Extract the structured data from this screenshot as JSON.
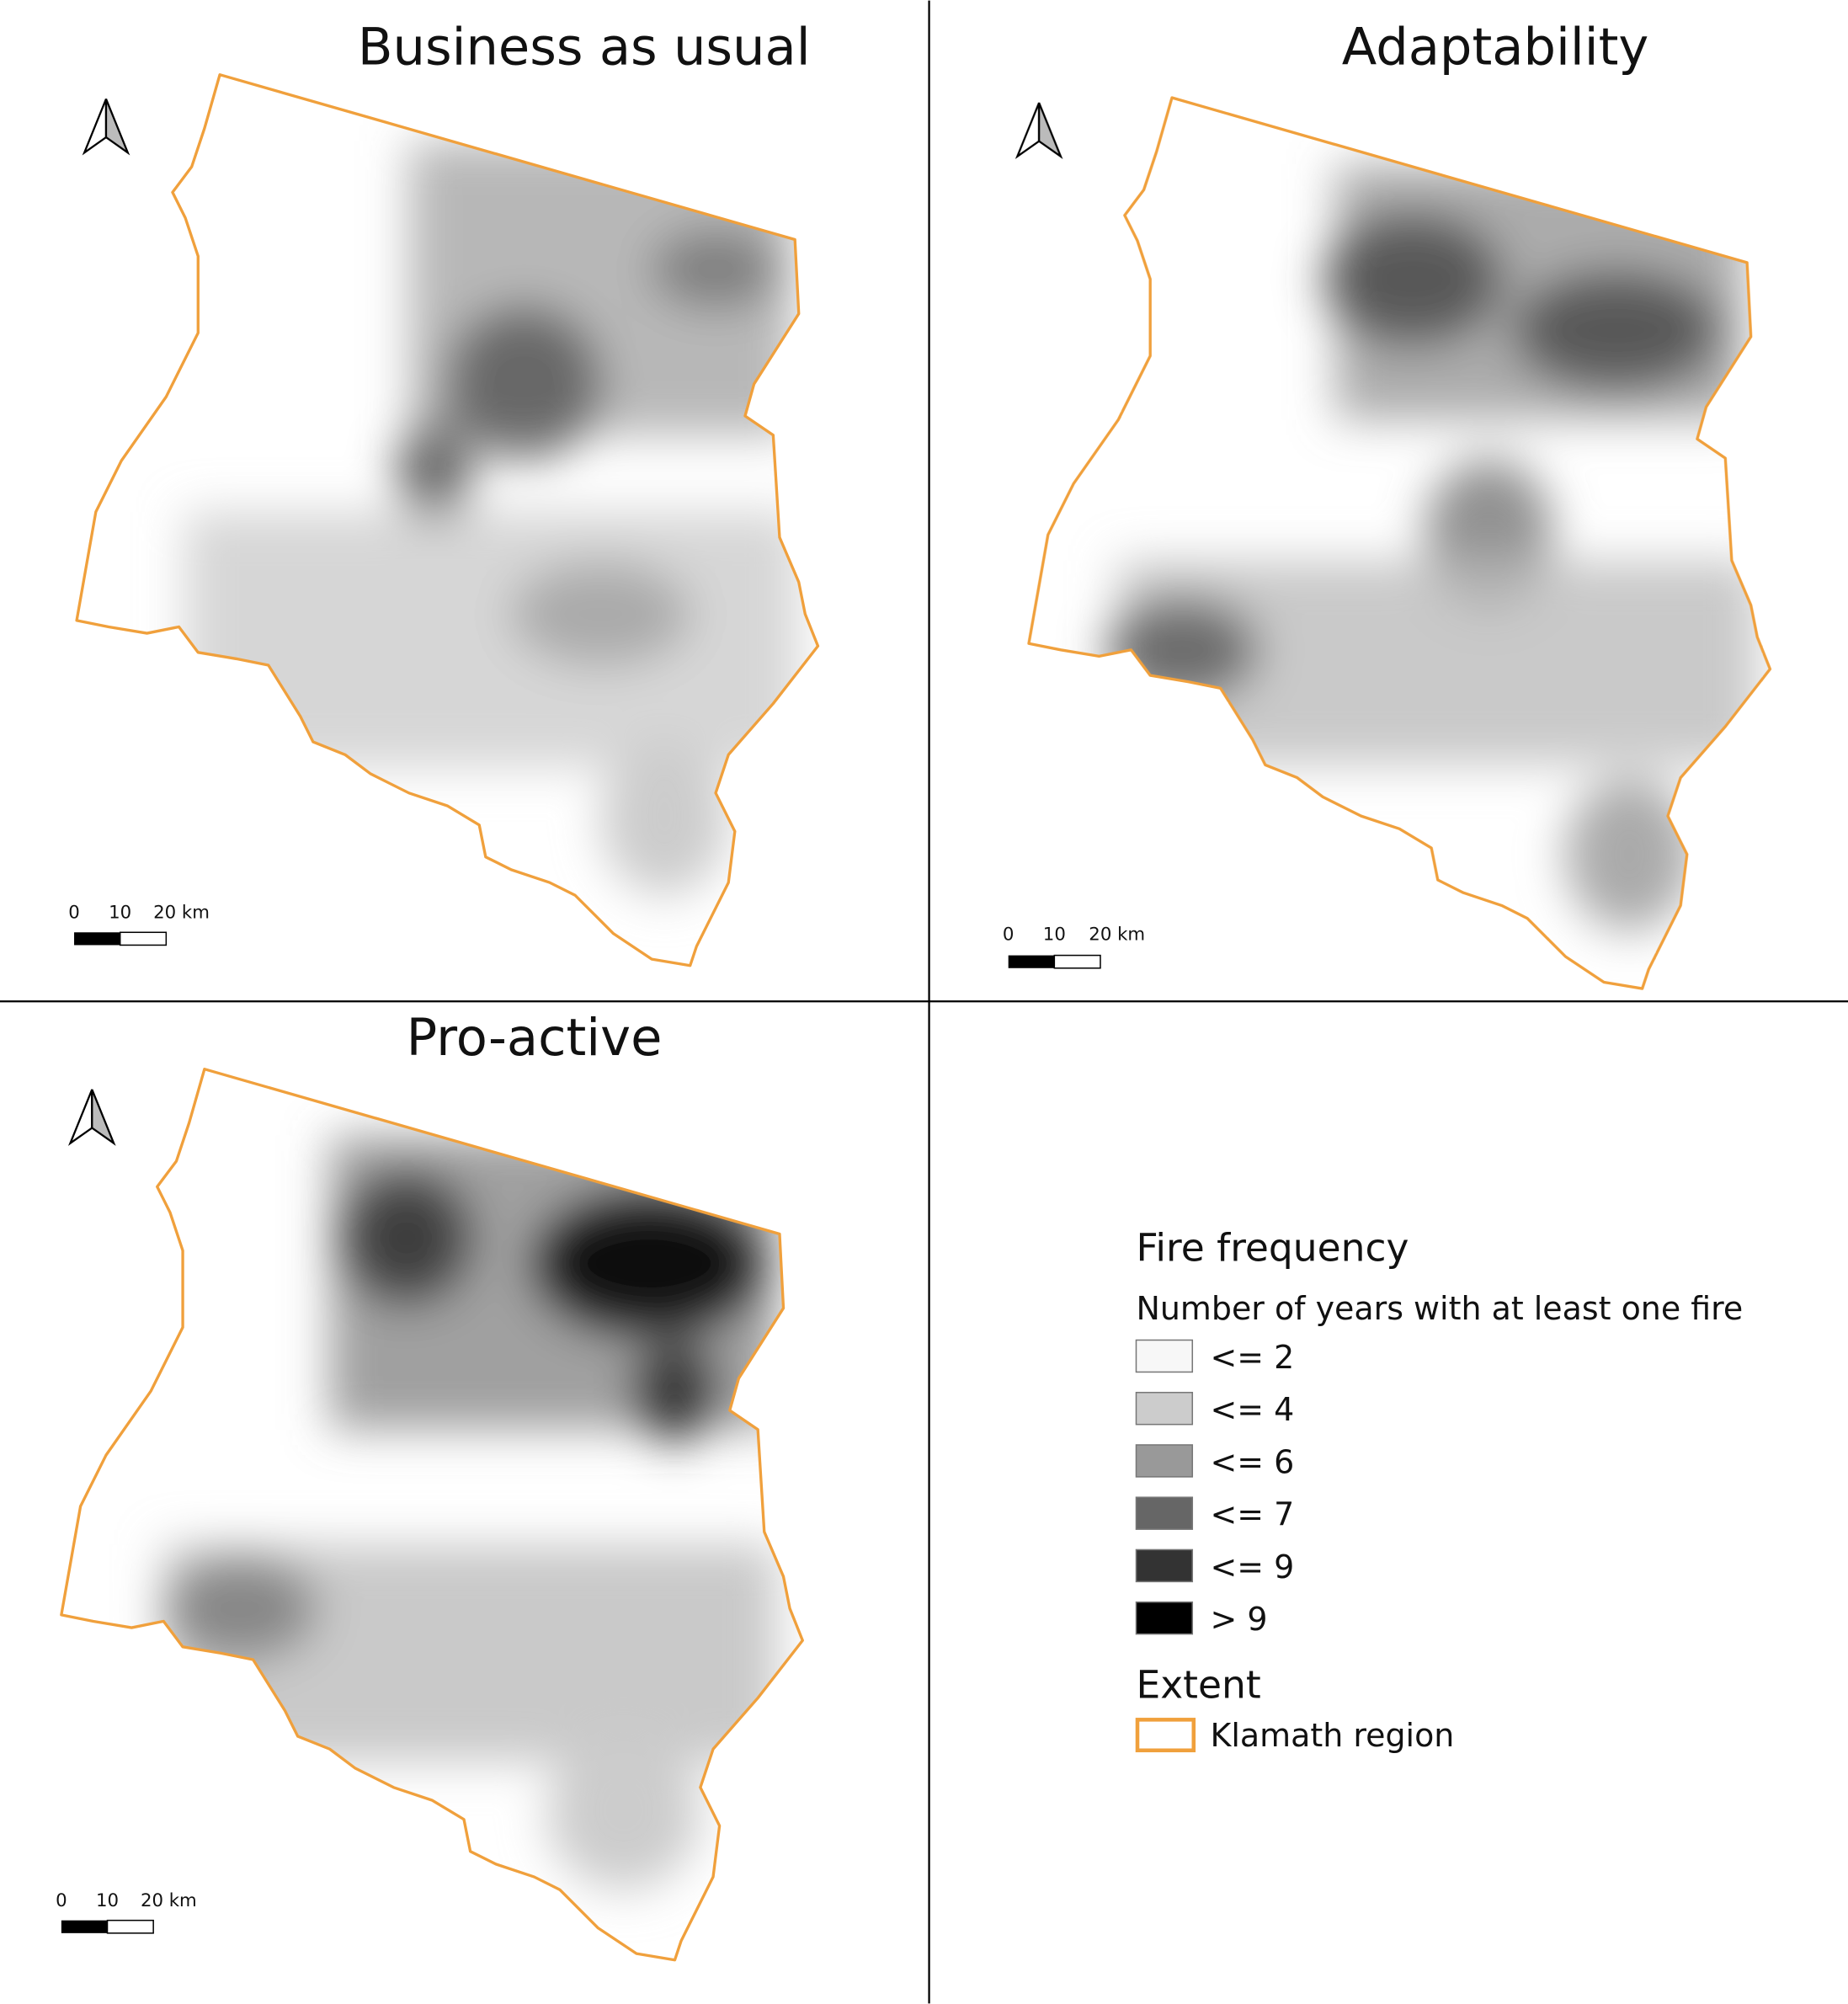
{
  "panels": [
    {
      "title": "Business as usual",
      "scale_bar": [
        "0",
        "10",
        "20 km"
      ]
    },
    {
      "title": "Adaptability",
      "scale_bar": [
        "0",
        "10",
        "20 km"
      ]
    },
    {
      "title": "Pro-active",
      "scale_bar": [
        "0",
        "10",
        "20 km"
      ]
    }
  ],
  "legend": {
    "title": "Fire frequency",
    "subtitle": "Number of years with at least one fire",
    "classes": [
      {
        "label": "<= 2",
        "color": "#f7f7f7"
      },
      {
        "label": "<= 4",
        "color": "#cccccc"
      },
      {
        "label": "<= 6",
        "color": "#999999"
      },
      {
        "label": "<= 7",
        "color": "#666666"
      },
      {
        "label": "<= 9",
        "color": "#333333"
      },
      {
        "label": "> 9",
        "color": "#000000"
      }
    ],
    "extent_title": "Extent",
    "extent_label": "Klamath region",
    "extent_color": "#f0a03c"
  }
}
